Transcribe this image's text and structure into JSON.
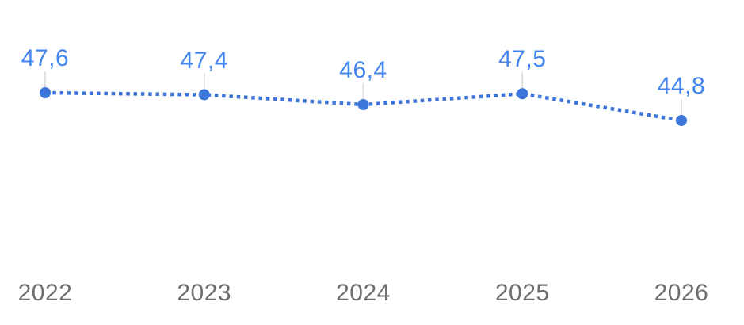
{
  "chart_data": {
    "type": "line",
    "categories": [
      "2022",
      "2023",
      "2024",
      "2025",
      "2026"
    ],
    "values": [
      47.6,
      47.4,
      46.4,
      47.5,
      44.8
    ],
    "value_labels": [
      "47,6",
      "47,4",
      "46,4",
      "47,5",
      "44,8"
    ],
    "series": [
      {
        "name": "value",
        "values": [
          47.6,
          47.4,
          46.4,
          47.5,
          44.8
        ]
      }
    ],
    "title": "",
    "xlabel": "",
    "ylabel": "",
    "grid": false,
    "legend_position": "none",
    "line_style": "dotted",
    "marker": "filled-circle",
    "colors": {
      "line": "#3c76db",
      "point": "#3c76db",
      "value_label": "#4385f0",
      "axis_label": "#6e6e6e",
      "leader_line": "#d9d9d9",
      "background": "#ffffff"
    }
  }
}
